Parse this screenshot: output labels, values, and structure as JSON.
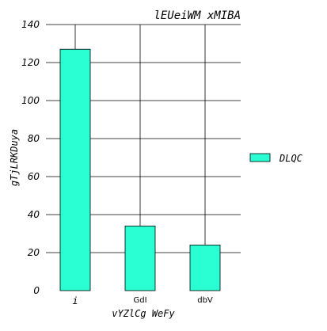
{
  "chart_data": {
    "type": "bar",
    "title": "lEUeiWM xMIBA",
    "xlabel": "vYZlCg WeFy",
    "ylabel": "gTjLRKDuya",
    "categories": [
      "i",
      "GdI",
      "dbV"
    ],
    "series": [
      {
        "name": "DLQC",
        "values": [
          127,
          34,
          24
        ]
      }
    ],
    "ylim": [
      0,
      140
    ],
    "yticks": [
      "0",
      "20",
      "40",
      "60",
      "80",
      "100",
      "120",
      "140"
    ],
    "grid": true,
    "legend_position": "right",
    "colors": {
      "bar": "#29ffd2",
      "bar_edge": "#000000",
      "grid": "#000000"
    }
  }
}
